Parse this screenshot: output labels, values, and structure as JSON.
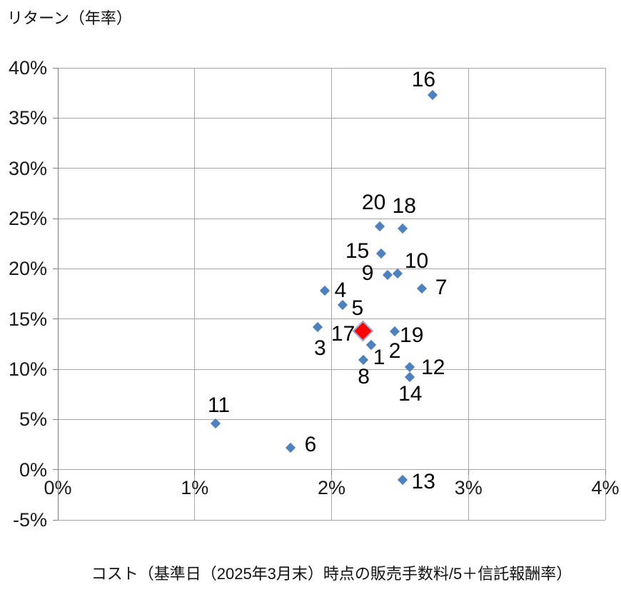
{
  "chart_data": {
    "type": "scatter",
    "title": "",
    "ylabel": "リターン（年率）",
    "xlabel": "コスト（基準日（2025年3月末）時点の販売手数料/5＋信託報酬率）",
    "xlim": [
      0,
      4
    ],
    "ylim": [
      -5,
      40
    ],
    "grid": true,
    "legend": "none",
    "x_ticks": [
      {
        "label": "0%",
        "value": 0
      },
      {
        "label": "1%",
        "value": 1
      },
      {
        "label": "2%",
        "value": 2
      },
      {
        "label": "3%",
        "value": 3
      },
      {
        "label": "4%",
        "value": 4
      }
    ],
    "y_ticks": [
      {
        "label": "40%",
        "value": 40
      },
      {
        "label": "35%",
        "value": 35
      },
      {
        "label": "30%",
        "value": 30
      },
      {
        "label": "25%",
        "value": 25
      },
      {
        "label": "20%",
        "value": 20
      },
      {
        "label": "15%",
        "value": 15
      },
      {
        "label": "10%",
        "value": 10
      },
      {
        "label": "5%",
        "value": 5
      },
      {
        "label": "0%",
        "value": 0
      },
      {
        "label": "-5%",
        "value": -5
      }
    ],
    "series": [
      {
        "name": "funds",
        "marker": "diamond",
        "color": "#4F81BD",
        "points": [
          {
            "label": "1",
            "x": 2.29,
            "y": 12.4,
            "label_dx": 11,
            "label_dy": 18
          },
          {
            "label": "2",
            "x": 2.29,
            "y": 12.4,
            "label_dx": 33,
            "label_dy": 9
          },
          {
            "label": "3",
            "x": 1.9,
            "y": 14.2,
            "label_dx": 3,
            "label_dy": 30
          },
          {
            "label": "4",
            "x": 1.95,
            "y": 17.8,
            "label_dx": 22,
            "label_dy": 0
          },
          {
            "label": "5",
            "x": 2.08,
            "y": 16.4,
            "label_dx": 21,
            "label_dy": 5
          },
          {
            "label": "6",
            "x": 1.7,
            "y": 2.2,
            "label_dx": 28,
            "label_dy": -4
          },
          {
            "label": "7",
            "x": 2.66,
            "y": 18.0,
            "label_dx": 27,
            "label_dy": -1
          },
          {
            "label": "8",
            "x": 2.23,
            "y": 10.9,
            "label_dx": 1,
            "label_dy": 24
          },
          {
            "label": "9",
            "x": 2.41,
            "y": 19.4,
            "label_dx": -28,
            "label_dy": -2
          },
          {
            "label": "10",
            "x": 2.48,
            "y": 19.5,
            "label_dx": 27,
            "label_dy": -17
          },
          {
            "label": "11",
            "x": 1.15,
            "y": 4.6,
            "label_dx": 5,
            "label_dy": -25
          },
          {
            "label": "12",
            "x": 2.57,
            "y": 10.2,
            "label_dx": 33,
            "label_dy": 1
          },
          {
            "label": "13",
            "x": 2.52,
            "y": -1.0,
            "label_dx": 29,
            "label_dy": 3
          },
          {
            "label": "14",
            "x": 2.57,
            "y": 9.2,
            "label_dx": 1,
            "label_dy": 24
          },
          {
            "label": "15",
            "x": 2.36,
            "y": 21.5,
            "label_dx": -33,
            "label_dy": -3
          },
          {
            "label": "16",
            "x": 2.74,
            "y": 37.3,
            "label_dx": -13,
            "label_dy": -21
          },
          {
            "label": "18",
            "x": 2.52,
            "y": 24.0,
            "label_dx": 2,
            "label_dy": -31
          },
          {
            "label": "19",
            "x": 2.46,
            "y": 13.8,
            "label_dx": 24,
            "label_dy": 6
          },
          {
            "label": "20",
            "x": 2.35,
            "y": 24.2,
            "label_dx": -8,
            "label_dy": -33
          }
        ]
      },
      {
        "name": "highlighted-fund",
        "marker": "diamond-large",
        "color": "#FE0000",
        "border_color": "#95B3D7",
        "points": [
          {
            "label": "17",
            "x": 2.23,
            "y": 13.8,
            "label_dx": -28,
            "label_dy": 4
          }
        ]
      }
    ]
  },
  "colors": {
    "background": "#FFFFFF",
    "gridline": "#A6A6A6",
    "axis": "#808080",
    "marker_blue": "#4F81BD",
    "marker_red": "#FE0000",
    "marker_red_border": "#95B3D7",
    "text": "#000000"
  }
}
